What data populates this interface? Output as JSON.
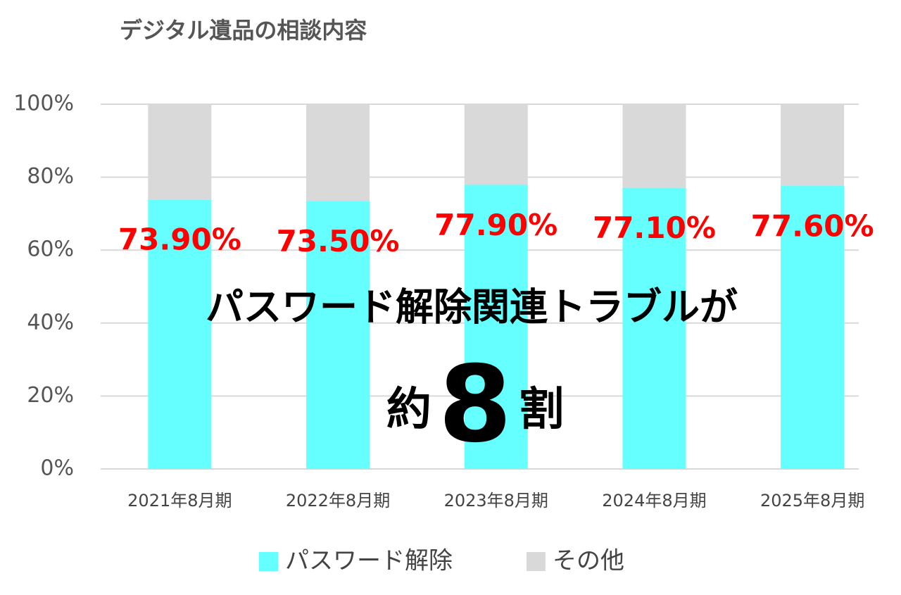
{
  "chart_data": {
    "type": "stacked_bar",
    "title": "デジタル遺品の相談内容",
    "categories": [
      "2021年8月期",
      "2022年8月期",
      "2023年8月期",
      "2024年8月期",
      "2025年8月期"
    ],
    "series": [
      {
        "name": "パスワード解除",
        "color": "#66ffff",
        "values": [
          73.9,
          73.5,
          77.9,
          77.1,
          77.6
        ],
        "value_labels": [
          "73.90%",
          "73.50%",
          "77.90%",
          "77.10%",
          "77.60%"
        ]
      },
      {
        "name": "その他",
        "color": "#d9d9d9",
        "values": [
          26.1,
          26.5,
          22.1,
          22.9,
          22.4
        ]
      }
    ],
    "ylim": [
      0,
      100
    ],
    "yticks": [
      {
        "value": 0,
        "label": "0%"
      },
      {
        "value": 20,
        "label": "20%"
      },
      {
        "value": 40,
        "label": "40%"
      },
      {
        "value": 60,
        "label": "60%"
      },
      {
        "value": 80,
        "label": "80%"
      },
      {
        "value": 100,
        "label": "100%"
      }
    ],
    "grid": true,
    "legend": "bottom",
    "annotations": [
      "パスワード解除関連トラブルが",
      "約",
      "8",
      "割"
    ]
  }
}
